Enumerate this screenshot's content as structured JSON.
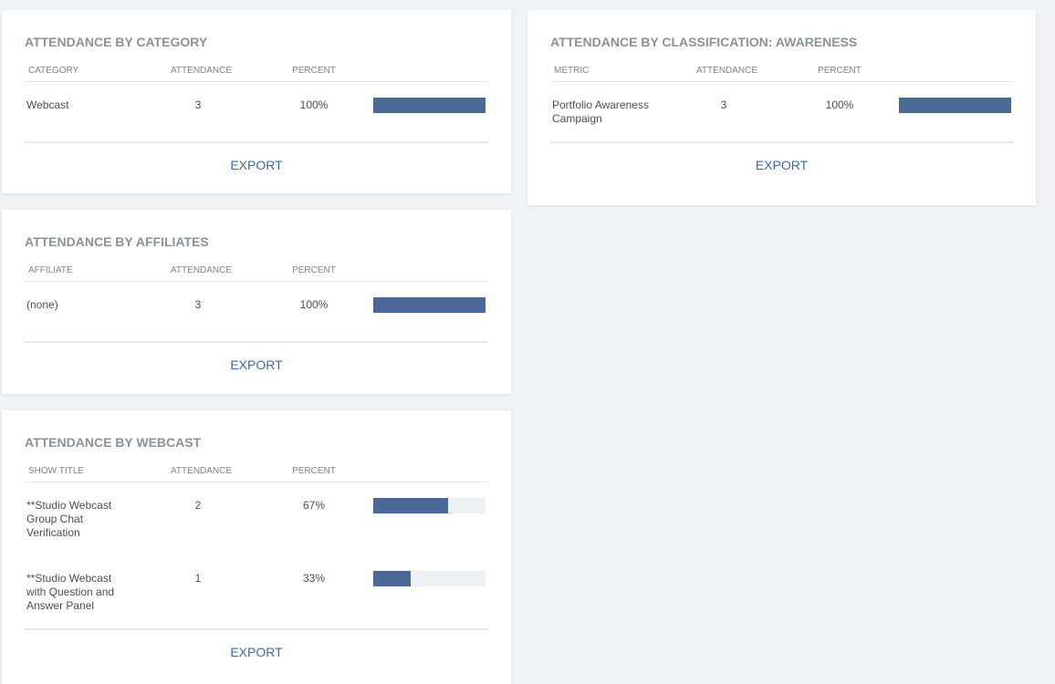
{
  "cards": [
    {
      "title": "ATTENDANCE BY CATEGORY",
      "columns": [
        "CATEGORY",
        "ATTENDANCE",
        "PERCENT"
      ],
      "rows": [
        {
          "name": "Webcast",
          "attendance": 3,
          "percent": {
            "value": 100,
            "label": "100%"
          }
        }
      ],
      "action": "EXPORT"
    },
    {
      "title": "ATTENDANCE BY CLASSIFICATION: AWARENESS",
      "columns": [
        "METRIC",
        "ATTENDANCE",
        "PERCENT"
      ],
      "rows": [
        {
          "name": "Portfolio Awareness Campaign",
          "attendance": 3,
          "percent": {
            "value": 100,
            "label": "100%"
          }
        }
      ],
      "action": "EXPORT"
    },
    {
      "title": "ATTENDANCE BY AFFILIATES",
      "columns": [
        "AFFILIATE",
        "ATTENDANCE",
        "PERCENT"
      ],
      "rows": [
        {
          "name": "(none)",
          "attendance": 3,
          "percent": {
            "value": 100,
            "label": "100%"
          }
        }
      ],
      "action": "EXPORT"
    },
    {
      "title": "ATTENDANCE BY WEBCAST",
      "columns": [
        "SHOW TITLE",
        "ATTENDANCE",
        "PERCENT"
      ],
      "rows": [
        {
          "name": "**Studio Webcast Group Chat Verification",
          "attendance": 2,
          "percent": {
            "value": 67,
            "label": "67%"
          }
        },
        {
          "name": "**Studio Webcast with Question and Answer Panel",
          "attendance": 1,
          "percent": {
            "value": 33,
            "label": "33%"
          }
        }
      ],
      "action": "EXPORT"
    }
  ]
}
